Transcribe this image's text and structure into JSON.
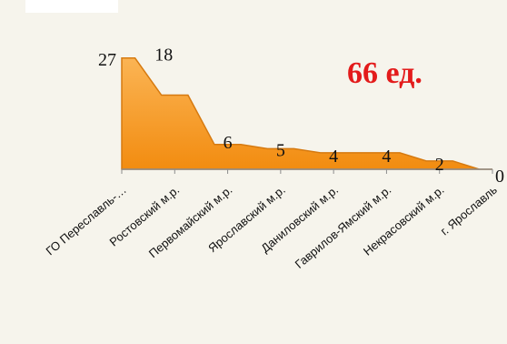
{
  "annotation": "66 ед.",
  "colors": {
    "fill": "#f59a1e",
    "stroke": "#d67a10",
    "axis": "#8c8c8c",
    "accent": "#e31b1b"
  },
  "chart_data": {
    "type": "area",
    "categories": [
      "ГО Переславль-…",
      "Ростовский м.р.",
      "Первомайский м.р.",
      "Ярославский м.р.",
      "Даниловский м.р.",
      "Гаврилов-Ямский м.р.",
      "Некрасовский м.р.",
      "г. Ярославль"
    ],
    "values": [
      27,
      18,
      6,
      5,
      4,
      4,
      2,
      0
    ],
    "data_labels": [
      "27",
      "18",
      "6",
      "5",
      "4",
      "4",
      "2",
      "0"
    ],
    "ylim": [
      0,
      38
    ],
    "grid": false,
    "legend": "none"
  }
}
